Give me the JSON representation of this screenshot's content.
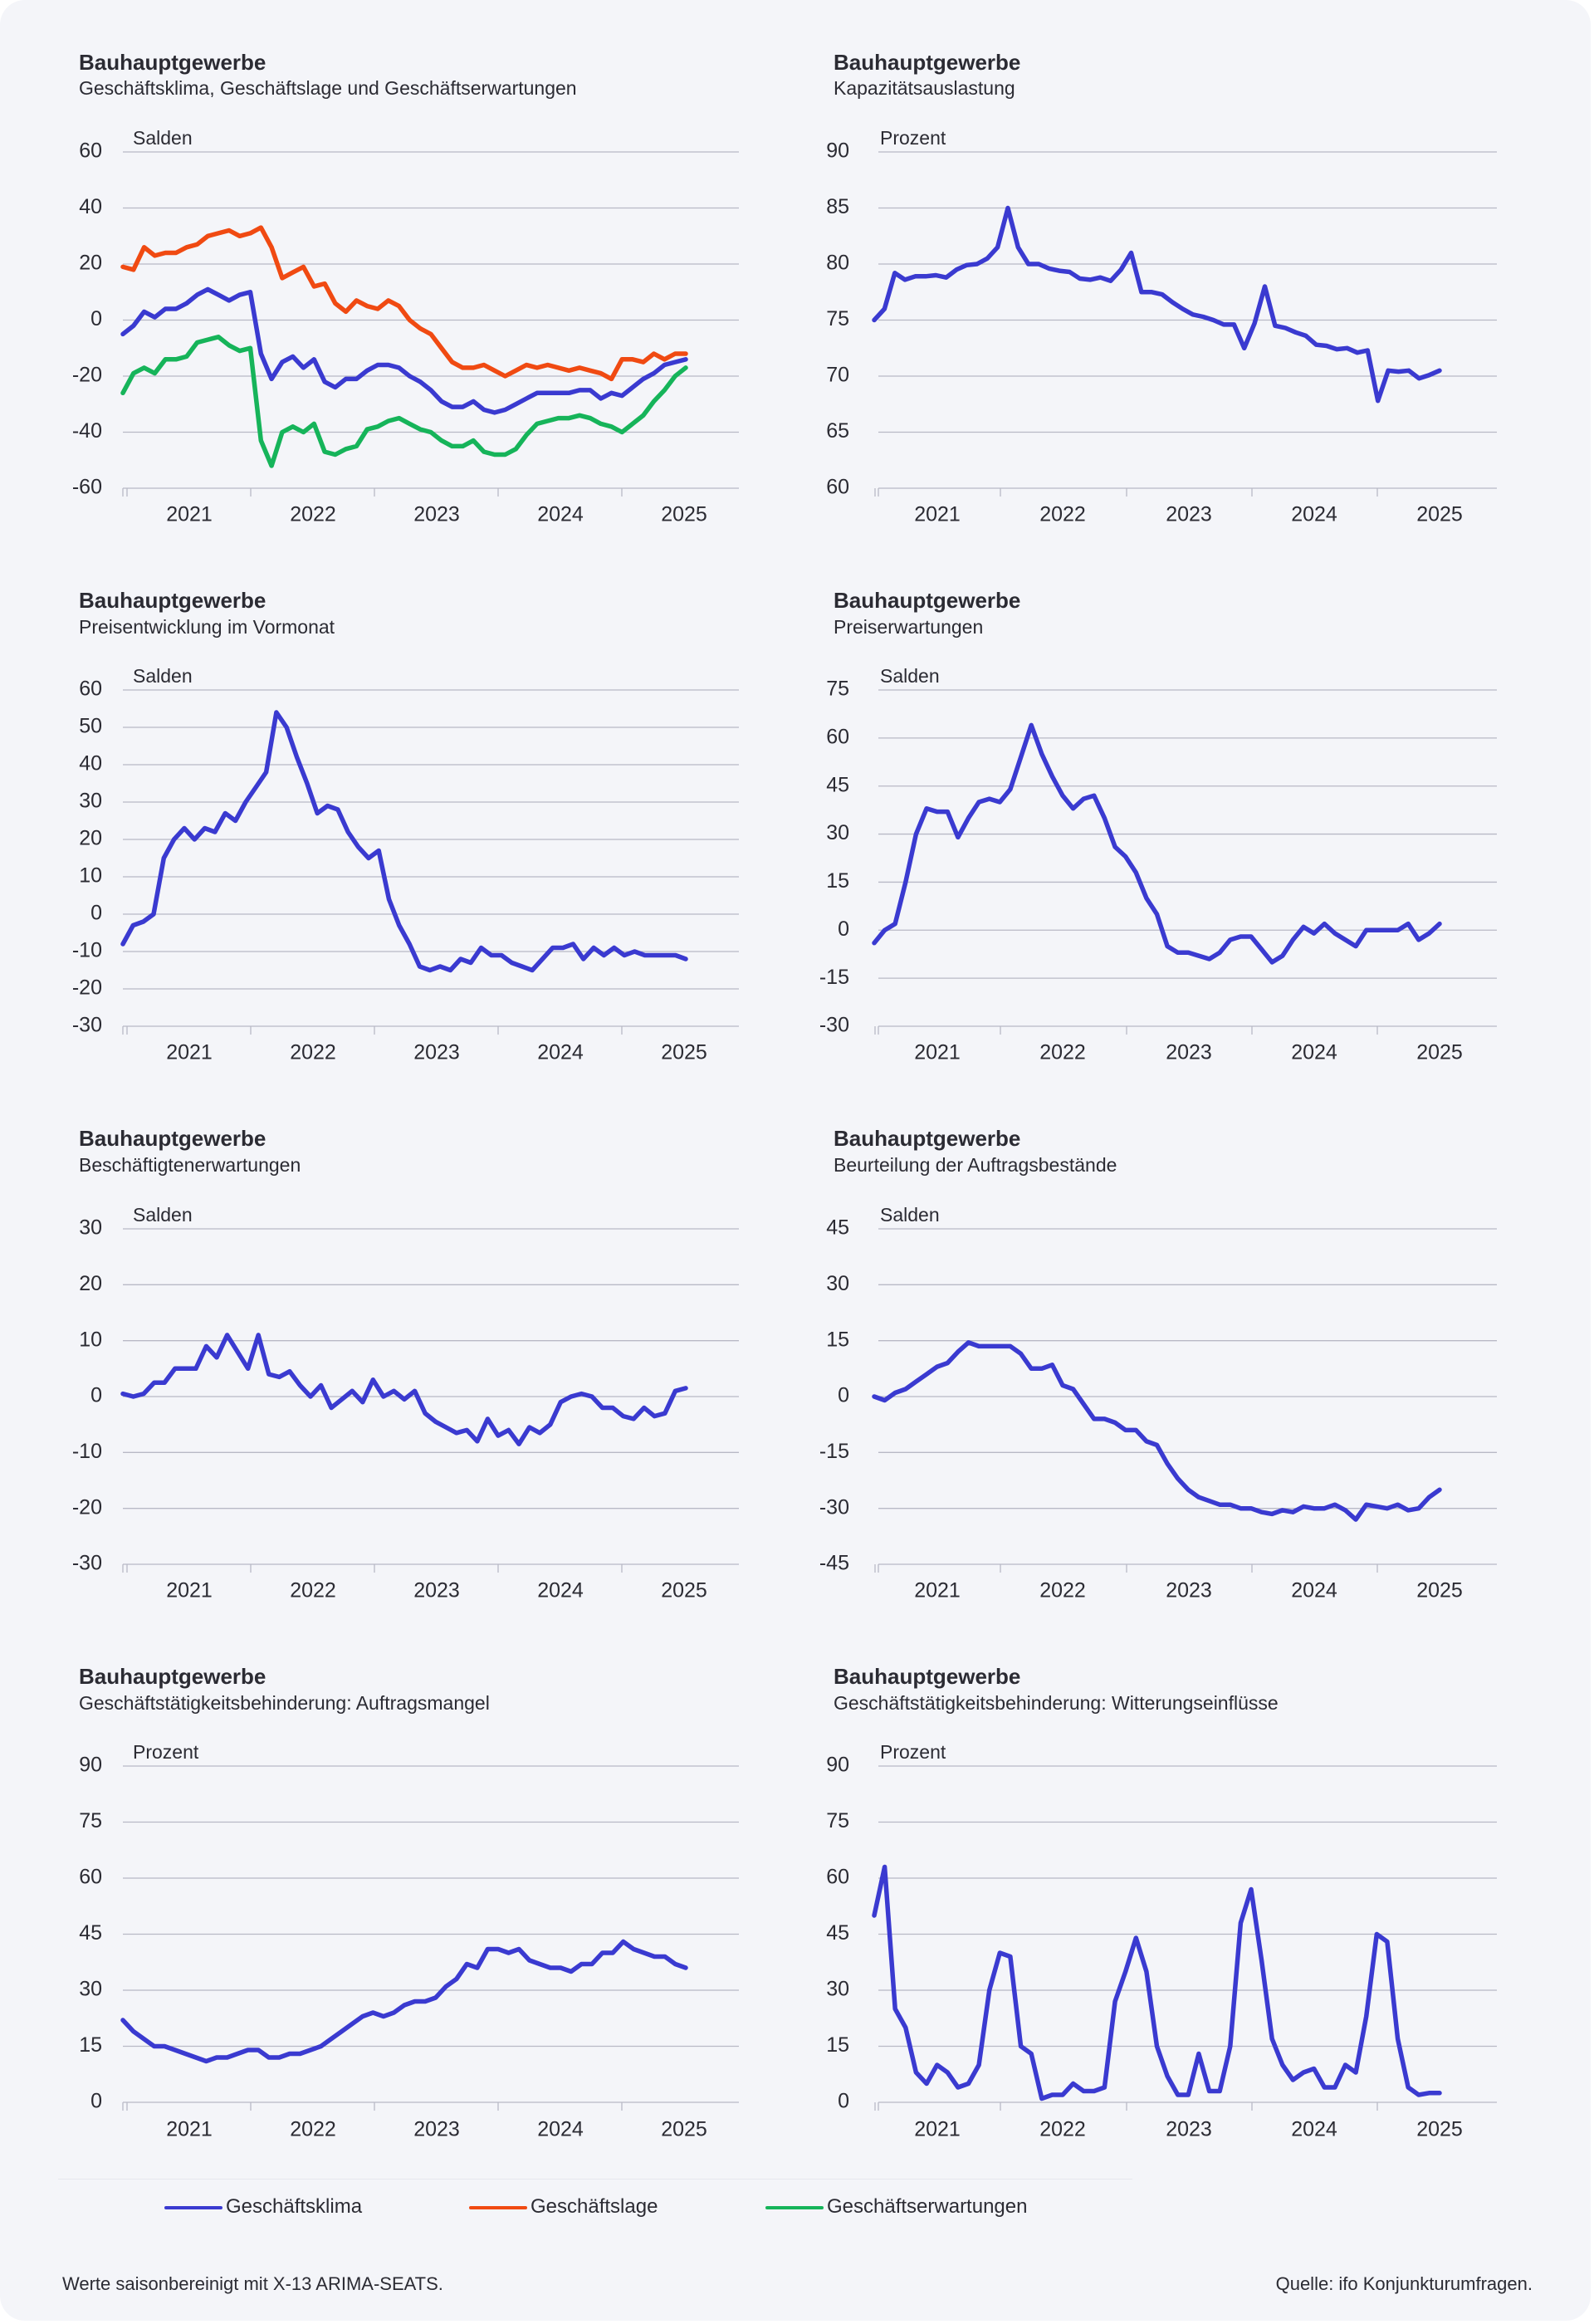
{
  "colors": {
    "blue": "#3a3ad0",
    "orange": "#f04a12",
    "green": "#16b45a",
    "text": "#2b2b33",
    "grid": "#b8b9c6"
  },
  "legend": [
    {
      "label": "Geschäftsklima",
      "color": "#3a3ad0"
    },
    {
      "label": "Geschäftslage",
      "color": "#f04a12"
    },
    {
      "label": "Geschäftserwartungen",
      "color": "#16b45a"
    }
  ],
  "footer": {
    "note": "Werte saisonbereinigt mit X-13 ARIMA-SEATS.",
    "source": "Quelle: ifo Konjunkturumfragen."
  },
  "chart_data": [
    {
      "type": "line",
      "title": "Bauhauptgewerbe",
      "subtitle": "Geschäftsklima, Geschäftslage und Geschäftserwartungen",
      "unit": "Salden",
      "ylim": [
        -60,
        60
      ],
      "yticks": [
        "60",
        "40",
        "20",
        "0",
        "-20",
        "-40",
        "-60"
      ],
      "xticks": [
        "2021",
        "2022",
        "2023",
        "2024",
        "2025"
      ],
      "x_start": "2020-07",
      "series": [
        {
          "name": "Geschäftsklima",
          "color": "#3a3ad0",
          "values": [
            -5,
            -2,
            3,
            1,
            4,
            4,
            6,
            9,
            11,
            9,
            7,
            9,
            10,
            -12,
            -21,
            -15,
            -13,
            -17,
            -14,
            -22,
            -24,
            -21,
            -21,
            -18,
            -16,
            -16,
            -17,
            -20,
            -22,
            -25,
            -29,
            -31,
            -31,
            -29,
            -32,
            -33,
            -32,
            -30,
            -28,
            -26,
            -26,
            -26,
            -26,
            -25,
            -25,
            -28,
            -26,
            -27,
            -24,
            -21,
            -19,
            -16,
            -15,
            -14
          ]
        },
        {
          "name": "Geschäftslage",
          "color": "#f04a12",
          "values": [
            19,
            18,
            26,
            23,
            24,
            24,
            26,
            27,
            30,
            31,
            32,
            30,
            31,
            33,
            26,
            15,
            17,
            19,
            12,
            13,
            6,
            3,
            7,
            5,
            4,
            7,
            5,
            0,
            -3,
            -5,
            -10,
            -15,
            -17,
            -17,
            -16,
            -18,
            -20,
            -18,
            -16,
            -17,
            -16,
            -17,
            -18,
            -17,
            -18,
            -19,
            -21,
            -14,
            -14,
            -15,
            -12,
            -14,
            -12,
            -12
          ]
        },
        {
          "name": "Geschäftserwartungen",
          "color": "#16b45a",
          "values": [
            -26,
            -19,
            -17,
            -19,
            -14,
            -14,
            -13,
            -8,
            -7,
            -6,
            -9,
            -11,
            -10,
            -43,
            -52,
            -40,
            -38,
            -40,
            -37,
            -47,
            -48,
            -46,
            -45,
            -39,
            -38,
            -36,
            -35,
            -37,
            -39,
            -40,
            -43,
            -45,
            -45,
            -43,
            -47,
            -48,
            -48,
            -46,
            -41,
            -37,
            -36,
            -35,
            -35,
            -34,
            -35,
            -37,
            -38,
            -40,
            -37,
            -34,
            -29,
            -25,
            -20,
            -17
          ]
        }
      ]
    },
    {
      "type": "line",
      "title": "Bauhauptgewerbe",
      "subtitle": "Kapazitätsauslastung",
      "unit": "Prozent",
      "ylim": [
        60,
        90
      ],
      "yticks": [
        "90",
        "85",
        "80",
        "75",
        "70",
        "65",
        "60"
      ],
      "xticks": [
        "2021",
        "2022",
        "2023",
        "2024",
        "2025"
      ],
      "x_start": "2020-07",
      "series": [
        {
          "color": "#3a3ad0",
          "values": [
            75,
            76,
            79.2,
            78.6,
            78.9,
            78.9,
            79,
            78.8,
            79.5,
            79.9,
            80,
            80.5,
            81.5,
            85,
            81.5,
            80,
            80,
            79.6,
            79.4,
            79.3,
            78.7,
            78.6,
            78.8,
            78.5,
            79.5,
            81,
            77.5,
            77.5,
            77.3,
            76.6,
            76,
            75.5,
            75.3,
            75,
            74.6,
            74.6,
            72.5,
            74.7,
            78,
            74.5,
            74.3,
            73.9,
            73.6,
            72.8,
            72.7,
            72.4,
            72.5,
            72.1,
            72.3,
            67.8,
            70.5,
            70.4,
            70.5,
            69.8,
            70.1,
            70.5
          ]
        }
      ]
    },
    {
      "type": "line",
      "title": "Bauhauptgewerbe",
      "subtitle": "Preisentwicklung im Vormonat",
      "unit": "Salden",
      "ylim": [
        -30,
        60
      ],
      "yticks": [
        "60",
        "50",
        "40",
        "30",
        "20",
        "10",
        "0",
        "-10",
        "-20",
        "-30"
      ],
      "xticks": [
        "2021",
        "2022",
        "2023",
        "2024",
        "2025"
      ],
      "x_start": "2020-07",
      "series": [
        {
          "color": "#3a3ad0",
          "values": [
            -8,
            -3,
            -2,
            0,
            15,
            20,
            23,
            20,
            23,
            22,
            27,
            25,
            30,
            34,
            38,
            54,
            50,
            42,
            35,
            27,
            29,
            28,
            22,
            18,
            15,
            17,
            4,
            -3,
            -8,
            -14,
            -15,
            -14,
            -15,
            -12,
            -13,
            -9,
            -11,
            -11,
            -13,
            -14,
            -15,
            -12,
            -9,
            -9,
            -8,
            -12,
            -9,
            -11,
            -9,
            -11,
            -10,
            -11,
            -11,
            -11,
            -11,
            -12
          ]
        }
      ]
    },
    {
      "type": "line",
      "title": "Bauhauptgewerbe",
      "subtitle": "Preiserwartungen",
      "unit": "Salden",
      "ylim": [
        -30,
        75
      ],
      "yticks": [
        "75",
        "60",
        "45",
        "30",
        "15",
        "0",
        "-15",
        "-30"
      ],
      "xticks": [
        "2021",
        "2022",
        "2023",
        "2024",
        "2025"
      ],
      "x_start": "2020-07",
      "series": [
        {
          "color": "#3a3ad0",
          "values": [
            -4,
            0,
            2,
            15,
            30,
            38,
            37,
            37,
            29,
            35,
            40,
            41,
            40,
            44,
            54,
            64,
            55,
            48,
            42,
            38,
            41,
            42,
            35,
            26,
            23,
            18,
            10,
            5,
            -5,
            -7,
            -7,
            -8,
            -9,
            -7,
            -3,
            -2,
            -2,
            -6,
            -10,
            -8,
            -3,
            1,
            -1,
            2,
            -1,
            -3,
            -5,
            0,
            0,
            0,
            0,
            2,
            -3,
            -1,
            2
          ]
        }
      ]
    },
    {
      "type": "line",
      "title": "Bauhauptgewerbe",
      "subtitle": "Beschäftigtenerwartungen",
      "unit": "Salden",
      "ylim": [
        -30,
        30
      ],
      "yticks": [
        "30",
        "20",
        "10",
        "0",
        "-10",
        "-20",
        "-30"
      ],
      "xticks": [
        "2021",
        "2022",
        "2023",
        "2024",
        "2025"
      ],
      "x_start": "2020-07",
      "series": [
        {
          "color": "#3a3ad0",
          "values": [
            0.5,
            0,
            0.5,
            2.5,
            2.5,
            5,
            5,
            5,
            9,
            7,
            11,
            8,
            5,
            11,
            4,
            3.5,
            4.5,
            2,
            0,
            2,
            -2,
            -0.5,
            1,
            -1,
            3,
            0,
            1,
            -0.5,
            1,
            -3,
            -4.5,
            -5.5,
            -6.5,
            -6,
            -8,
            -4,
            -7,
            -6,
            -8.5,
            -5.5,
            -6.5,
            -5,
            -1,
            0,
            0.5,
            0,
            -2,
            -2,
            -3.5,
            -4,
            -2,
            -3.5,
            -3,
            1,
            1.5
          ]
        }
      ]
    },
    {
      "type": "line",
      "title": "Bauhauptgewerbe",
      "subtitle": "Beurteilung der Auftragsbestände",
      "unit": "Salden",
      "ylim": [
        -45,
        45
      ],
      "yticks": [
        "45",
        "30",
        "15",
        "0",
        "-15",
        "-30",
        "-45"
      ],
      "xticks": [
        "2021",
        "2022",
        "2023",
        "2024",
        "2025"
      ],
      "x_start": "2020-07",
      "series": [
        {
          "color": "#3a3ad0",
          "values": [
            0,
            -1,
            1,
            2,
            4,
            6,
            8,
            9,
            12,
            14.5,
            13.5,
            13.5,
            13.5,
            13.5,
            11.5,
            7.5,
            7.5,
            8.5,
            3,
            2,
            -2,
            -6,
            -6,
            -7,
            -9,
            -9,
            -12,
            -13,
            -18,
            -22,
            -25,
            -27,
            -28,
            -29,
            -29,
            -30,
            -30,
            -31,
            -31.5,
            -30.5,
            -31,
            -29.5,
            -30,
            -30,
            -29,
            -30.5,
            -33,
            -29,
            -29.5,
            -30,
            -29,
            -30.5,
            -30,
            -27,
            -25
          ]
        }
      ]
    },
    {
      "type": "line",
      "title": "Bauhauptgewerbe",
      "subtitle": "Geschäftstätigkeitsbehinderung: Auftragsmangel",
      "unit": "Prozent",
      "ylim": [
        0,
        90
      ],
      "yticks": [
        "90",
        "75",
        "60",
        "45",
        "30",
        "15",
        "0"
      ],
      "xticks": [
        "2021",
        "2022",
        "2023",
        "2024",
        "2025"
      ],
      "x_start": "2020-07",
      "series": [
        {
          "color": "#3a3ad0",
          "values": [
            22,
            19,
            17,
            15,
            15,
            14,
            13,
            12,
            11,
            12,
            12,
            13,
            14,
            14,
            12,
            12,
            13,
            13,
            14,
            15,
            17,
            19,
            21,
            23,
            24,
            23,
            24,
            26,
            27,
            27,
            28,
            31,
            33,
            37,
            36,
            41,
            41,
            40,
            41,
            38,
            37,
            36,
            36,
            35,
            37,
            37,
            40,
            40,
            43,
            41,
            40,
            39,
            39,
            37,
            36
          ]
        }
      ]
    },
    {
      "type": "line",
      "title": "Bauhauptgewerbe",
      "subtitle": "Geschäftstätigkeitsbehinderung: Witterungseinflüsse",
      "unit": "Prozent",
      "ylim": [
        0,
        90
      ],
      "yticks": [
        "90",
        "75",
        "60",
        "45",
        "30",
        "15",
        "0"
      ],
      "xticks": [
        "2021",
        "2022",
        "2023",
        "2024",
        "2025"
      ],
      "x_start": "2020-07",
      "series": [
        {
          "color": "#3a3ad0",
          "values": [
            50,
            63,
            25,
            20,
            8,
            5,
            10,
            8,
            4,
            5,
            10,
            30,
            40,
            39,
            15,
            13,
            1,
            2,
            2,
            5,
            3,
            3,
            4,
            27,
            35,
            44,
            35,
            15,
            7,
            2,
            2,
            13,
            3,
            3,
            15,
            48,
            57,
            38,
            17,
            10,
            6,
            8,
            9,
            4,
            4,
            10,
            8,
            23,
            45,
            43,
            17,
            4,
            2,
            2.5,
            2.5
          ]
        }
      ]
    }
  ]
}
